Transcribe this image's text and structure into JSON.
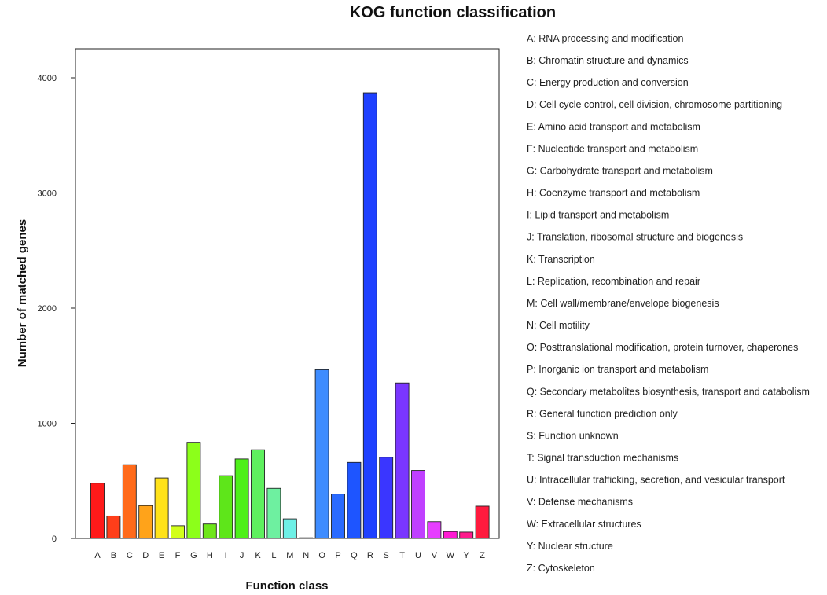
{
  "chart_data": {
    "type": "bar",
    "title": "KOG function classification",
    "xlabel": "Function class",
    "ylabel": "Number of matched genes",
    "ylim": [
      0,
      4250
    ],
    "yticks": [
      0,
      1000,
      2000,
      3000,
      4000
    ],
    "grid": false,
    "legend_position": "right",
    "categories": [
      "A",
      "B",
      "C",
      "D",
      "E",
      "F",
      "G",
      "H",
      "I",
      "J",
      "K",
      "L",
      "M",
      "N",
      "O",
      "P",
      "Q",
      "R",
      "S",
      "T",
      "U",
      "V",
      "W",
      "Y",
      "Z"
    ],
    "values": [
      480,
      195,
      640,
      285,
      525,
      110,
      835,
      125,
      545,
      690,
      770,
      435,
      170,
      5,
      1465,
      385,
      660,
      3870,
      705,
      1350,
      590,
      145,
      60,
      55,
      280
    ],
    "colors": [
      "#ff1a1a",
      "#ff3e1a",
      "#ff6a1a",
      "#ffa31a",
      "#ffe21a",
      "#d2ff1a",
      "#8cff1a",
      "#6ee61a",
      "#5ee61a",
      "#4ef01a",
      "#5ef05e",
      "#6ef0a0",
      "#6ef0e6",
      "#3ecfff",
      "#3e8cff",
      "#2a6aff",
      "#1e55ff",
      "#1e40ff",
      "#3a36ff",
      "#7a36ff",
      "#c040ff",
      "#e63eff",
      "#ff1ad2",
      "#ff1a8c",
      "#ff1a3e"
    ],
    "legend": [
      "A: RNA processing and modification",
      "B: Chromatin structure and dynamics",
      "C: Energy production and conversion",
      "D: Cell cycle control, cell division, chromosome partitioning",
      "E: Amino acid transport and metabolism",
      "F: Nucleotide transport and metabolism",
      "G: Carbohydrate transport and metabolism",
      "H: Coenzyme transport and metabolism",
      "I: Lipid transport and metabolism",
      "J: Translation, ribosomal structure and biogenesis",
      "K: Transcription",
      "L: Replication, recombination and repair",
      "M: Cell wall/membrane/envelope biogenesis",
      "N: Cell motility",
      "O: Posttranslational modification, protein turnover, chaperones",
      "P: Inorganic ion transport and metabolism",
      "Q: Secondary metabolites biosynthesis, transport and catabolism",
      "R: General function prediction only",
      "S: Function unknown",
      "T: Signal transduction mechanisms",
      "U: Intracellular trafficking, secretion, and vesicular transport",
      "V: Defense mechanisms",
      "W: Extracellular structures",
      "Y: Nuclear structure",
      "Z: Cytoskeleton"
    ]
  }
}
